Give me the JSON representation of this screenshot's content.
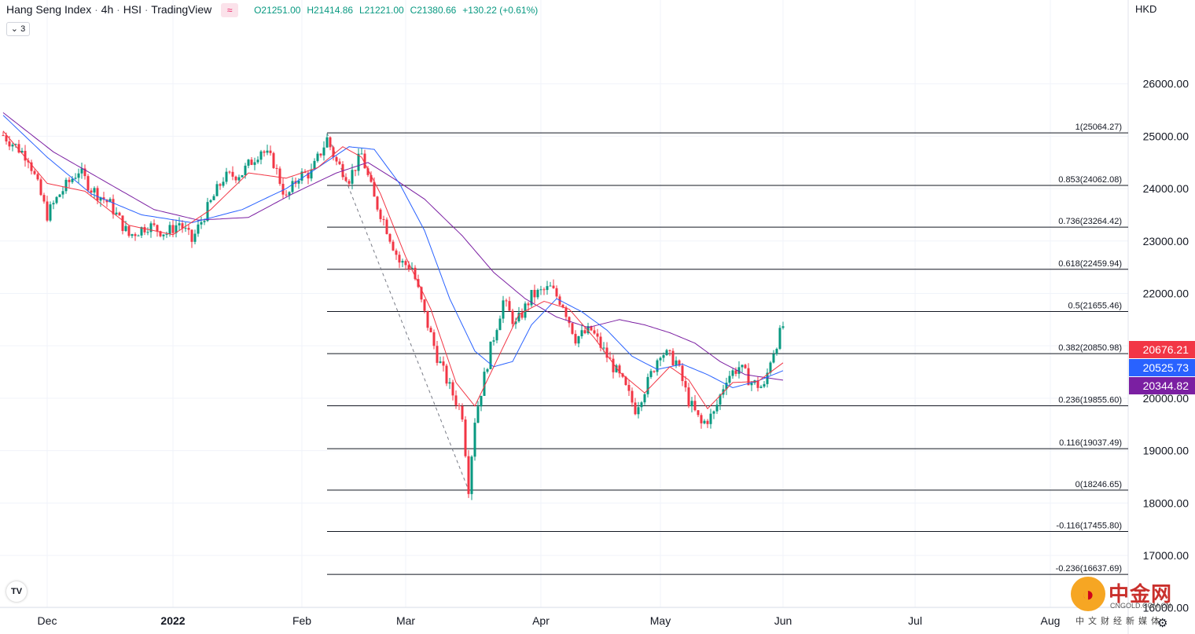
{
  "header": {
    "symbol": "Hang Seng Index",
    "interval": "4h",
    "ticker": "HSI",
    "source": "TradingView",
    "open": "O21251.00",
    "high": "H21414.86",
    "low": "L21221.00",
    "close": "C21380.66",
    "change": "+130.22 (+0.61%)",
    "indicators_count": "3",
    "wave_icon": "wave-icon",
    "collapse_icon": "chevron-down-icon"
  },
  "currency": "HKD",
  "tv_logo": "TV",
  "watermark": {
    "name": "中金网",
    "site": "CNGOLD.COM.CN",
    "tagline": "中文财经新媒体"
  },
  "colors": {
    "up": "#089981",
    "down": "#f23645",
    "ma_fast": "#f23645",
    "ma_mid": "#2962ff",
    "ma_slow": "#7b1fa2",
    "fib_line": "#131722",
    "grid": "#f0f3fa"
  },
  "chart_data": {
    "type": "candlestick",
    "title": "Hang Seng Index · 4h · HSI · TradingView",
    "ylim": [
      15500,
      27600
    ],
    "y_ticks": [
      "26000.00",
      "25000.00",
      "24000.00",
      "23000.00",
      "22000.00",
      "21000.00",
      "20000.00",
      "19000.00",
      "18000.00",
      "17000.00",
      "16000.00"
    ],
    "y_tick_values": [
      26000,
      25000,
      24000,
      23000,
      22000,
      21000,
      20000,
      19000,
      18000,
      17000,
      16000
    ],
    "x_labels": [
      "Dec",
      "2022",
      "Feb",
      "Mar",
      "Apr",
      "May",
      "Jun",
      "Jul",
      "Aug"
    ],
    "x_label_bars": [
      14,
      54,
      95,
      128,
      171,
      209,
      248,
      290,
      333
    ],
    "fibonacci": {
      "high": 25064.27,
      "low": 18246.65,
      "levels": [
        {
          "ratio": "1",
          "label": "1(25064.27)",
          "value": 25064.27
        },
        {
          "ratio": "0.853",
          "label": "0.853(24062.08)",
          "value": 24062.08
        },
        {
          "ratio": "0.736",
          "label": "0.736(23264.42)",
          "value": 23264.42
        },
        {
          "ratio": "0.618",
          "label": "0.618(22459.94)",
          "value": 22459.94
        },
        {
          "ratio": "0.5",
          "label": "0.5(21655.46)",
          "value": 21655.46
        },
        {
          "ratio": "0.382",
          "label": "0.382(20850.98)",
          "value": 20850.98
        },
        {
          "ratio": "0.236",
          "label": "0.236(19855.60)",
          "value": 19855.6
        },
        {
          "ratio": "0.116",
          "label": "0.116(19037.49)",
          "value": 19037.49
        },
        {
          "ratio": "0",
          "label": "0(18246.65)",
          "value": 18246.65
        },
        {
          "ratio": "-0.116",
          "label": "-0.116(17455.80)",
          "value": 17455.8
        },
        {
          "ratio": "-0.236",
          "label": "-0.236(16637.69)",
          "value": 16637.69
        }
      ],
      "start_bar": 103
    },
    "price_tags": [
      {
        "label": "20676.21",
        "value": 20676.21,
        "color": "#f23645"
      },
      {
        "label": "20525.73",
        "value": 20525.73,
        "color": "#2962ff"
      },
      {
        "label": "20344.82",
        "value": 20344.82,
        "color": "#7b1fa2"
      }
    ],
    "trend_line": {
      "from": {
        "bar": 103,
        "value": 25064
      },
      "to": {
        "bar": 148,
        "value": 18247
      }
    },
    "close_path": [
      [
        0,
        25020
      ],
      [
        8,
        24600
      ],
      [
        14,
        23500
      ],
      [
        18,
        23900
      ],
      [
        24,
        24350
      ],
      [
        28,
        24000
      ],
      [
        34,
        23700
      ],
      [
        40,
        23100
      ],
      [
        46,
        23300
      ],
      [
        52,
        23150
      ],
      [
        56,
        23350
      ],
      [
        60,
        23000
      ],
      [
        64,
        23500
      ],
      [
        70,
        24200
      ],
      [
        76,
        24300
      ],
      [
        82,
        24750
      ],
      [
        86,
        24500
      ],
      [
        90,
        23800
      ],
      [
        94,
        24250
      ],
      [
        98,
        24300
      ],
      [
        101,
        24700
      ],
      [
        103,
        24950
      ],
      [
        106,
        24500
      ],
      [
        110,
        24200
      ],
      [
        114,
        24650
      ],
      [
        118,
        23800
      ],
      [
        121,
        23400
      ],
      [
        126,
        22600
      ],
      [
        130,
        22500
      ],
      [
        134,
        21600
      ],
      [
        138,
        20800
      ],
      [
        142,
        20200
      ],
      [
        146,
        19700
      ],
      [
        148,
        18300
      ],
      [
        150,
        19600
      ],
      [
        155,
        20950
      ],
      [
        159,
        21850
      ],
      [
        163,
        21400
      ],
      [
        168,
        21950
      ],
      [
        174,
        22100
      ],
      [
        178,
        21800
      ],
      [
        182,
        21150
      ],
      [
        187,
        21300
      ],
      [
        192,
        20800
      ],
      [
        197,
        20300
      ],
      [
        201,
        19800
      ],
      [
        205,
        20300
      ],
      [
        209,
        20900
      ],
      [
        214,
        20700
      ],
      [
        218,
        19950
      ],
      [
        222,
        19500
      ],
      [
        226,
        19700
      ],
      [
        230,
        20400
      ],
      [
        234,
        20600
      ],
      [
        238,
        20300
      ],
      [
        242,
        20200
      ],
      [
        244,
        20750
      ],
      [
        248,
        21380
      ]
    ],
    "ma_fast_path": [
      [
        0,
        25100
      ],
      [
        14,
        24100
      ],
      [
        26,
        23950
      ],
      [
        40,
        23300
      ],
      [
        54,
        23120
      ],
      [
        66,
        23600
      ],
      [
        78,
        24300
      ],
      [
        90,
        24200
      ],
      [
        100,
        24400
      ],
      [
        108,
        24800
      ],
      [
        114,
        24600
      ],
      [
        120,
        23900
      ],
      [
        128,
        22700
      ],
      [
        136,
        21700
      ],
      [
        144,
        20300
      ],
      [
        150,
        19850
      ],
      [
        156,
        20600
      ],
      [
        164,
        21600
      ],
      [
        172,
        21850
      ],
      [
        180,
        21700
      ],
      [
        188,
        21150
      ],
      [
        196,
        20500
      ],
      [
        204,
        20100
      ],
      [
        212,
        20600
      ],
      [
        218,
        20350
      ],
      [
        224,
        19800
      ],
      [
        232,
        20300
      ],
      [
        240,
        20320
      ],
      [
        248,
        20676
      ]
    ],
    "ma_mid_path": [
      [
        0,
        25400
      ],
      [
        14,
        24600
      ],
      [
        28,
        23900
      ],
      [
        44,
        23500
      ],
      [
        60,
        23350
      ],
      [
        76,
        23600
      ],
      [
        90,
        24000
      ],
      [
        100,
        24400
      ],
      [
        110,
        24800
      ],
      [
        118,
        24750
      ],
      [
        126,
        24100
      ],
      [
        134,
        23200
      ],
      [
        142,
        21900
      ],
      [
        150,
        20900
      ],
      [
        156,
        20600
      ],
      [
        162,
        20700
      ],
      [
        168,
        21400
      ],
      [
        176,
        21900
      ],
      [
        184,
        21650
      ],
      [
        192,
        21300
      ],
      [
        200,
        20800
      ],
      [
        208,
        20550
      ],
      [
        216,
        20650
      ],
      [
        224,
        20450
      ],
      [
        232,
        20200
      ],
      [
        240,
        20330
      ],
      [
        248,
        20526
      ]
    ],
    "ma_slow_path": [
      [
        0,
        25450
      ],
      [
        16,
        24700
      ],
      [
        32,
        24150
      ],
      [
        48,
        23600
      ],
      [
        62,
        23400
      ],
      [
        78,
        23450
      ],
      [
        92,
        23900
      ],
      [
        106,
        24300
      ],
      [
        116,
        24500
      ],
      [
        124,
        24200
      ],
      [
        134,
        23800
      ],
      [
        146,
        23100
      ],
      [
        156,
        22400
      ],
      [
        166,
        21900
      ],
      [
        176,
        21550
      ],
      [
        186,
        21350
      ],
      [
        196,
        21500
      ],
      [
        204,
        21400
      ],
      [
        212,
        21250
      ],
      [
        220,
        21050
      ],
      [
        228,
        20700
      ],
      [
        236,
        20450
      ],
      [
        248,
        20345
      ]
    ]
  }
}
